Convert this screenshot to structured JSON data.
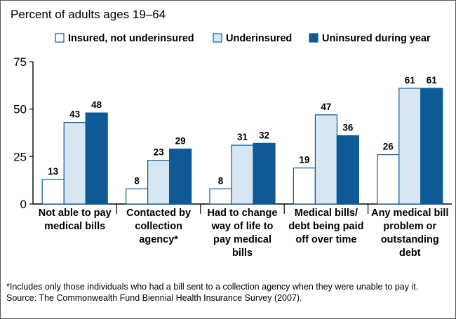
{
  "chart_data": {
    "type": "bar",
    "subtitle": "Percent of adults ages 19–64",
    "categories": [
      [
        "Not able to pay",
        "medical bills"
      ],
      [
        "Contacted by",
        "collection",
        "agency*"
      ],
      [
        "Had to change",
        "way of life to",
        "pay medical",
        "bills"
      ],
      [
        "Medical bills/",
        "debt being paid",
        "off over time"
      ],
      [
        "Any medical bill",
        "problem or",
        "outstanding",
        "debt"
      ]
    ],
    "series": [
      {
        "name": "Insured, not underinsured",
        "values": [
          13,
          8,
          8,
          19,
          26
        ],
        "color": "#ffffff"
      },
      {
        "name": "Underinsured",
        "values": [
          43,
          23,
          31,
          47,
          61
        ],
        "color": "#d6e6f3"
      },
      {
        "name": "Uninsured during year",
        "values": [
          48,
          29,
          32,
          36,
          61
        ],
        "color": "#0d5a96"
      }
    ],
    "ylim": [
      0,
      75
    ],
    "yticks": [
      "0",
      "25",
      "50",
      "75"
    ],
    "legend_position": "top",
    "grid": false,
    "bar_outline": "#0d5a96"
  },
  "footnotes": [
    "*Includes only those individuals who had a bill sent to a collection agency when they were unable to pay it.",
    "Source: The Commonwealth Fund Biennial Health Insurance Survey (2007)."
  ]
}
